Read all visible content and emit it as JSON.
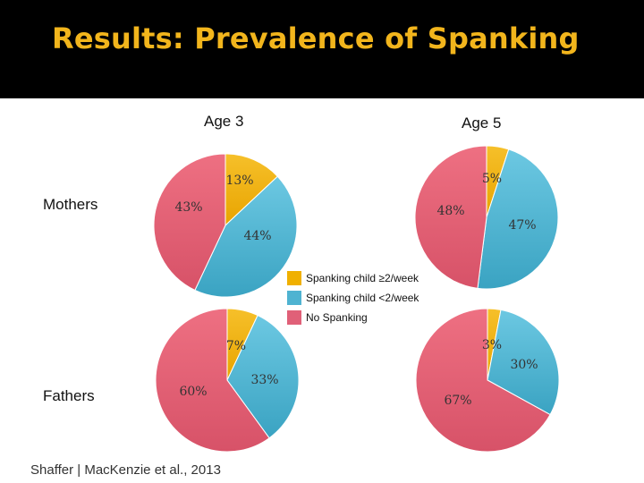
{
  "title": "Results: Prevalence of Spanking",
  "colors": {
    "frequent": "#f0b000",
    "infrequent": "#4fb3d1",
    "none": "#e06078",
    "title": "#f2b51c"
  },
  "chart_data": {
    "type": "pie",
    "columns": [
      "Age 3",
      "Age 5"
    ],
    "rows": [
      "Mothers",
      "Fathers"
    ],
    "legend": [
      {
        "key": "frequent",
        "label": "Spanking child ≥2/week"
      },
      {
        "key": "infrequent",
        "label": "Spanking child <2/week"
      },
      {
        "key": "none",
        "label": "No Spanking"
      }
    ],
    "charts": [
      {
        "id": "mothers-age3",
        "row": "Mothers",
        "column": "Age 3",
        "slices": [
          {
            "key": "frequent",
            "value": 13,
            "label": "13%"
          },
          {
            "key": "infrequent",
            "value": 44,
            "label": "44%"
          },
          {
            "key": "none",
            "value": 43,
            "label": "43%"
          }
        ]
      },
      {
        "id": "mothers-age5",
        "row": "Mothers",
        "column": "Age 5",
        "slices": [
          {
            "key": "frequent",
            "value": 5,
            "label": "5%"
          },
          {
            "key": "infrequent",
            "value": 47,
            "label": "47%"
          },
          {
            "key": "none",
            "value": 48,
            "label": "48%"
          }
        ]
      },
      {
        "id": "fathers-age3",
        "row": "Fathers",
        "column": "Age 3",
        "slices": [
          {
            "key": "frequent",
            "value": 7,
            "label": "7%"
          },
          {
            "key": "infrequent",
            "value": 33,
            "label": "33%"
          },
          {
            "key": "none",
            "value": 60,
            "label": "60%"
          }
        ]
      },
      {
        "id": "fathers-age5",
        "row": "Fathers",
        "column": "Age 5",
        "slices": [
          {
            "key": "frequent",
            "value": 3,
            "label": "3%"
          },
          {
            "key": "infrequent",
            "value": 30,
            "label": "30%"
          },
          {
            "key": "none",
            "value": 67,
            "label": "67%"
          }
        ]
      }
    ]
  },
  "source": "Shaffer | MacKenzie et al., 2013"
}
